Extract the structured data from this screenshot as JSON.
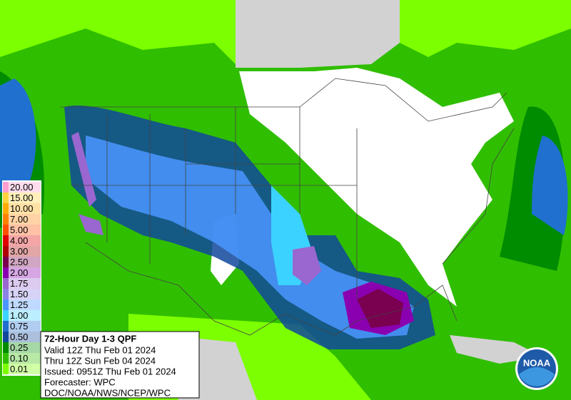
{
  "legend": {
    "items": [
      {
        "label": "20.00",
        "color": "#ff9ecf"
      },
      {
        "label": "15.00",
        "color": "#ffd23c"
      },
      {
        "label": "10.00",
        "color": "#ffaa00"
      },
      {
        "label": "7.00",
        "color": "#ff8000"
      },
      {
        "label": "5.00",
        "color": "#ff5000"
      },
      {
        "label": "4.00",
        "color": "#e00000"
      },
      {
        "label": "3.00",
        "color": "#b00000"
      },
      {
        "label": "2.50",
        "color": "#7a0050"
      },
      {
        "label": "2.00",
        "color": "#8a00b0"
      },
      {
        "label": "1.75",
        "color": "#9a66d0"
      },
      {
        "label": "1.50",
        "color": "#8c82e6"
      },
      {
        "label": "1.25",
        "color": "#4a96ff"
      },
      {
        "label": "1.00",
        "color": "#3cd2ff"
      },
      {
        "label": "0.75",
        "color": "#2070d0"
      },
      {
        "label": "0.50",
        "color": "#10489c"
      },
      {
        "label": "0.25",
        "color": "#008c00"
      },
      {
        "label": "0.10",
        "color": "#30be00"
      },
      {
        "label": "0.01",
        "color": "#7cff00"
      }
    ]
  },
  "info": {
    "title": "72-Hour Day 1-3 QPF",
    "lines": [
      "Valid 12Z Thu Feb 01 2024",
      "Thru 12Z Sun Feb 04 2024",
      "Issued: 0951Z Thu Feb 01 2024",
      "Forecaster: WPC",
      "DOC/NOAA/NWS/NCEP/WPC"
    ]
  },
  "logo": {
    "text": "NOAA"
  }
}
